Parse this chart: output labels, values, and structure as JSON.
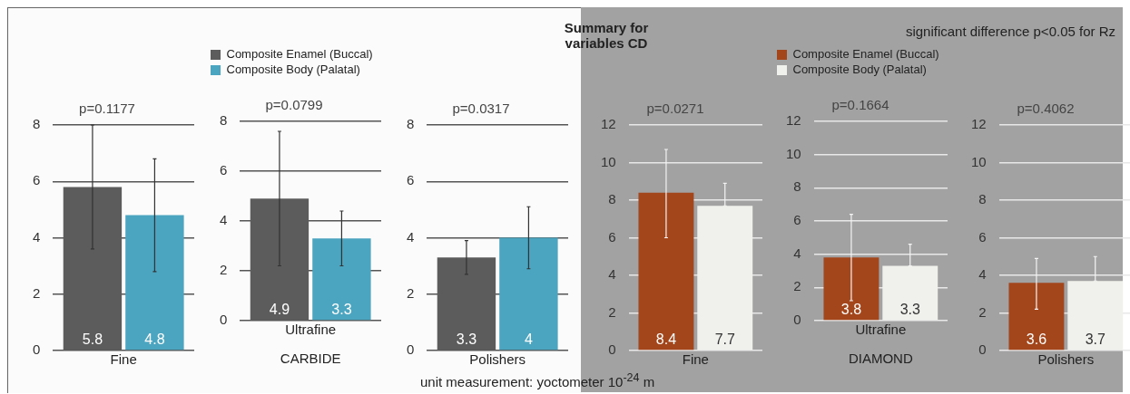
{
  "chart_data": [
    {
      "type": "other",
      "title": "Summary for variables CD",
      "annotations": [
        "significant difference p<0.05 for Rz",
        "unit measurement: yoctometer 10$^{-24}$ m"
      ]
    },
    {
      "type": "bar",
      "title": "p=0.1177",
      "categories": [
        "Fine"
      ],
      "ylim": [
        0,
        8
      ],
      "yticks": [
        0,
        2,
        4,
        6,
        8
      ],
      "grid": "y",
      "data_labels": true,
      "series": [
        {
          "color": "#5c5c5c",
          "values": [
            5.8
          ],
          "errors": [
            [
              3.6,
              8.0
            ]
          ]
        },
        {
          "color": "#4ba5c0",
          "values": [
            4.8
          ],
          "errors": [
            [
              2.8,
              6.8
            ]
          ]
        }
      ]
    },
    {
      "type": "bar",
      "title": "p=0.0799",
      "xlabel": "CARBIDE",
      "legend": "top",
      "categories": [
        "Ultrafine"
      ],
      "ylim": [
        0,
        8
      ],
      "yticks": [
        0,
        2,
        4,
        6,
        8
      ],
      "grid": "y",
      "data_labels": true,
      "series": [
        {
          "name": "Composite Enamel (Buccal)",
          "color": "#5c5c5c",
          "values": [
            4.9
          ],
          "errors": [
            [
              2.2,
              7.6
            ]
          ]
        },
        {
          "name": "Composite Body (Palatal)",
          "color": "#4ba5c0",
          "values": [
            3.3
          ],
          "errors": [
            [
              2.2,
              4.4
            ]
          ]
        }
      ]
    },
    {
      "type": "bar",
      "title": "p=0.0317",
      "categories": [
        "Polishers"
      ],
      "ylim": [
        0,
        8
      ],
      "yticks": [
        0,
        2,
        4,
        6,
        8
      ],
      "grid": "y",
      "data_labels": true,
      "series": [
        {
          "color": "#5c5c5c",
          "values": [
            3.3
          ],
          "errors": [
            [
              2.7,
              3.9
            ]
          ]
        },
        {
          "color": "#4ba5c0",
          "values": [
            4
          ],
          "errors": [
            [
              2.9,
              5.1
            ]
          ]
        }
      ]
    },
    {
      "type": "bar",
      "title": "p=0.0271",
      "categories": [
        "Fine"
      ],
      "ylim": [
        0,
        12
      ],
      "yticks": [
        0,
        2,
        4,
        6,
        8,
        10,
        12
      ],
      "grid": "y",
      "data_labels": true,
      "series": [
        {
          "color": "#a3461c",
          "values": [
            8.4
          ],
          "errors": [
            [
              6.0,
              10.7
            ]
          ]
        },
        {
          "color": "#f0f0ec",
          "values": [
            7.7
          ],
          "errors": [
            [
              7.7,
              8.9
            ]
          ]
        }
      ]
    },
    {
      "type": "bar",
      "title": "p=0.1664",
      "xlabel": "DIAMOND",
      "legend": "top",
      "categories": [
        "Ultrafine"
      ],
      "ylim": [
        0,
        12
      ],
      "yticks": [
        0,
        2,
        4,
        6,
        8,
        10,
        12
      ],
      "grid": "y",
      "data_labels": true,
      "series": [
        {
          "name": "Composite Enamel (Buccal)",
          "color": "#a3461c",
          "values": [
            3.8
          ],
          "errors": [
            [
              1.2,
              6.4
            ]
          ]
        },
        {
          "name": "Composite Body (Palatal)",
          "color": "#f0f0ec",
          "values": [
            3.3
          ],
          "errors": [
            [
              3.3,
              4.6
            ]
          ]
        }
      ]
    },
    {
      "type": "bar",
      "title": "p=0.4062",
      "categories": [
        "Polishers"
      ],
      "ylim": [
        0,
        12
      ],
      "yticks": [
        0,
        2,
        4,
        6,
        8,
        10,
        12
      ],
      "grid": "y",
      "data_labels": true,
      "series": [
        {
          "color": "#a3461c",
          "values": [
            3.6
          ],
          "errors": [
            [
              2.2,
              4.9
            ]
          ]
        },
        {
          "color": "#f0f0ec",
          "values": [
            3.7
          ],
          "errors": [
            [
              3.7,
              5.0
            ]
          ]
        }
      ]
    }
  ]
}
